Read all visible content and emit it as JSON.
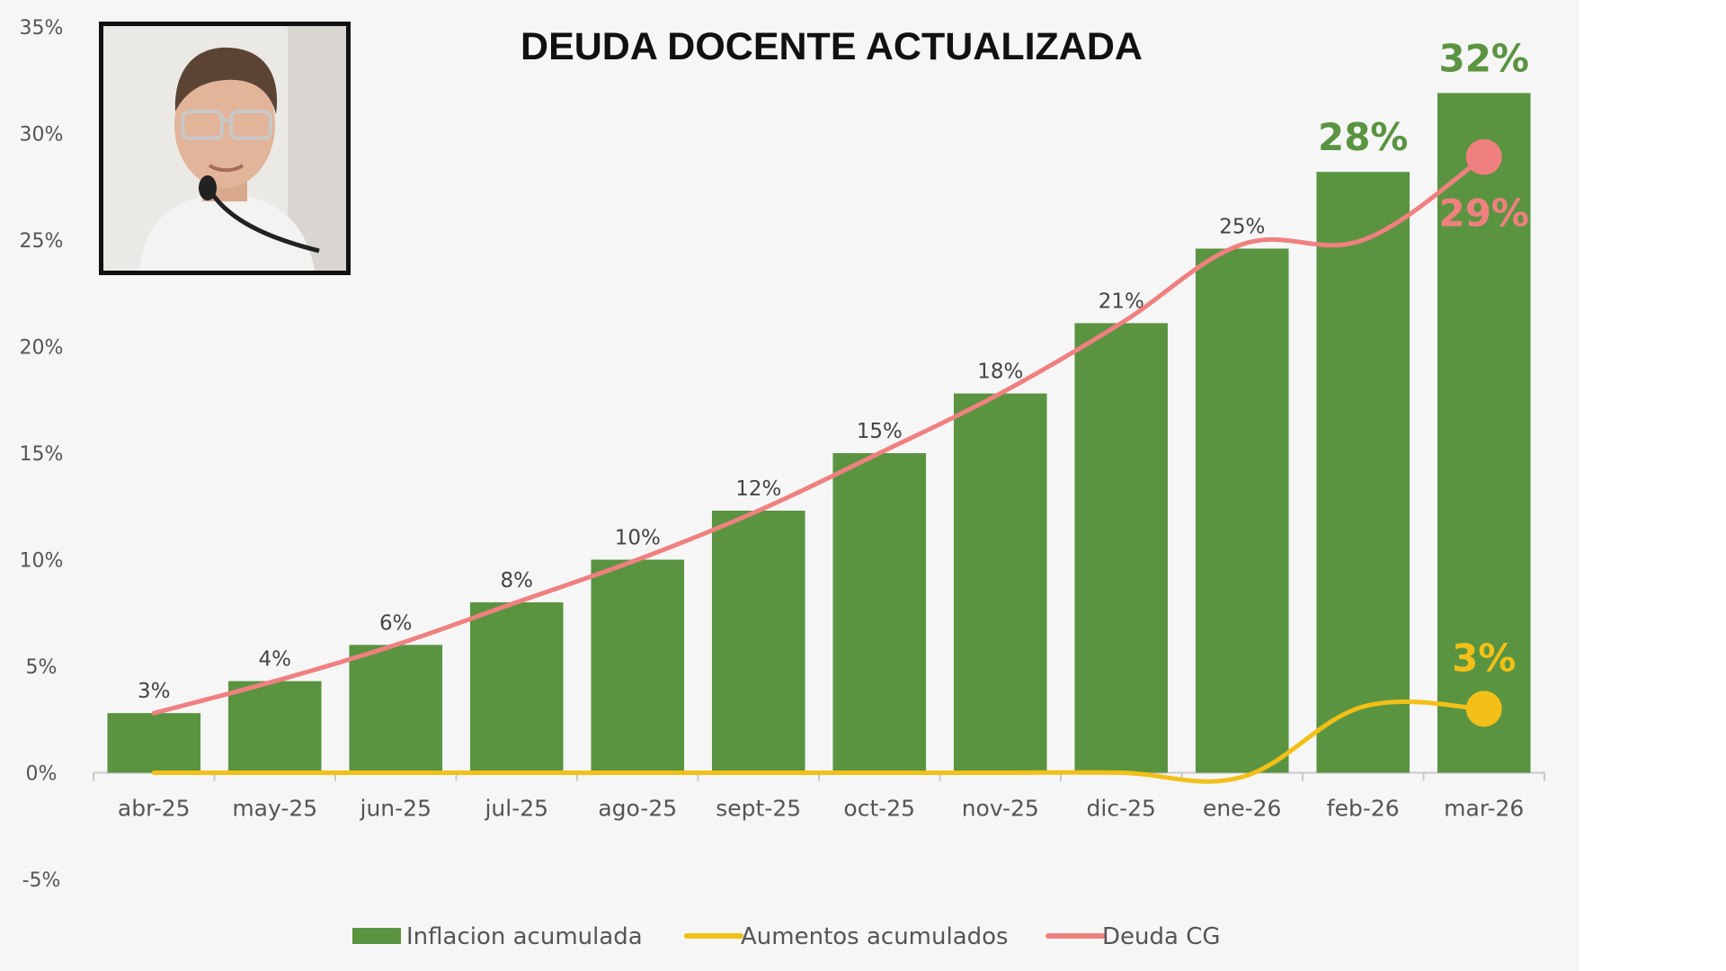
{
  "chart_data": {
    "type": "bar",
    "title": "DEUDA DOCENTE ACTUALIZADA",
    "categories": [
      "abr-25",
      "may-25",
      "jun-25",
      "jul-25",
      "ago-25",
      "sept-25",
      "oct-25",
      "nov-25",
      "dic-25",
      "ene-26",
      "feb-26",
      "mar-26"
    ],
    "ylim": [
      -5,
      35
    ],
    "yticks": [
      "35%",
      "30%",
      "25%",
      "20%",
      "15%",
      "10%",
      "5%",
      "0%",
      "-5%"
    ],
    "ytick_values": [
      35,
      30,
      25,
      20,
      15,
      10,
      5,
      0,
      -5
    ],
    "series": [
      {
        "name": "Inflacion acumulada",
        "kind": "bar",
        "color": "#5a9441",
        "values": [
          2.8,
          4.3,
          6.0,
          8.0,
          10.0,
          12.3,
          15.0,
          17.8,
          21.1,
          24.6,
          28.2,
          31.9
        ],
        "labels": [
          "3%",
          "4%",
          "6%",
          "8%",
          "10%",
          "12%",
          "15%",
          "18%",
          "21%",
          "25%",
          "28%",
          "32%"
        ]
      },
      {
        "name": "Aumentos acumulados",
        "kind": "line",
        "color": "#f2c018",
        "values": [
          0,
          0,
          0,
          0,
          0,
          0,
          0,
          0,
          0,
          -0.2,
          3.1,
          3.0
        ],
        "end_label": "3%"
      },
      {
        "name": "Deuda CG",
        "kind": "line",
        "color": "#f08080",
        "values": [
          2.8,
          4.3,
          6.0,
          8.0,
          10.0,
          12.3,
          15.0,
          17.8,
          21.1,
          24.8,
          25.0,
          28.9
        ],
        "end_label": "29%"
      }
    ],
    "legend": [
      "Inflacion acumulada",
      "Aumentos acumulados",
      "Deuda CG"
    ],
    "legend_position": "bottom"
  },
  "photo": {
    "description_icon": "person-portrait-icon"
  }
}
